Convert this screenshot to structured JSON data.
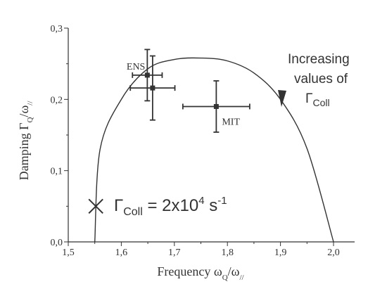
{
  "chart_data": {
    "type": "scatter",
    "xlabel": {
      "main": "Frequency ω",
      "sub1": "Q",
      "sep": "/ω",
      "sub2": "//"
    },
    "ylabel": {
      "main": "Damping Γ",
      "sub1": "Q",
      "sep": "/ω",
      "sub2": "//"
    },
    "xlim": [
      1.5,
      2.0
    ],
    "ylim": [
      0.0,
      0.3
    ],
    "x_ticks": [
      {
        "value": 1.5,
        "label": "1,5"
      },
      {
        "value": 1.6,
        "label": "1,6"
      },
      {
        "value": 1.7,
        "label": "1,7"
      },
      {
        "value": 1.8,
        "label": "1,8"
      },
      {
        "value": 1.9,
        "label": "1,9"
      },
      {
        "value": 2.0,
        "label": "2,0"
      }
    ],
    "y_ticks": [
      {
        "value": 0.0,
        "label": "0,0"
      },
      {
        "value": 0.1,
        "label": "0,1"
      },
      {
        "value": 0.2,
        "label": "0,2"
      },
      {
        "value": 0.3,
        "label": "0,3"
      }
    ],
    "grid": false,
    "curve": {
      "description_points": [
        [
          1.55,
          0.0
        ],
        [
          1.56,
          0.13
        ],
        [
          1.6,
          0.2
        ],
        [
          1.65,
          0.243
        ],
        [
          1.7,
          0.256
        ],
        [
          1.75,
          0.258
        ],
        [
          1.8,
          0.254
        ],
        [
          1.85,
          0.237
        ],
        [
          1.9,
          0.2
        ],
        [
          1.95,
          0.131
        ],
        [
          2.0,
          0.0
        ]
      ]
    },
    "points": [
      {
        "label": "ENS",
        "x": 1.649,
        "y": 0.234,
        "xerr": 0.028,
        "yerr": 0.036,
        "show_label": true
      },
      {
        "label": "",
        "x": 1.659,
        "y": 0.216,
        "xerr": 0.042,
        "yerr": 0.045,
        "show_label": false
      },
      {
        "label": "MIT",
        "x": 1.779,
        "y": 0.19,
        "xerr": 0.063,
        "yerr": 0.036,
        "show_label": true
      }
    ],
    "marker_point": {
      "x": 1.552,
      "y": 0.05
    },
    "annotations": {
      "gamma_label": {
        "main": "Γ",
        "sub": "Coll",
        "eq": " = 2x10",
        "exp": "4",
        "unit": " s",
        "unit_exp": "-1"
      },
      "increasing": {
        "line1": "Increasing",
        "line2": "values of",
        "line3_main": "Γ",
        "line3_sub": "Coll"
      }
    }
  }
}
